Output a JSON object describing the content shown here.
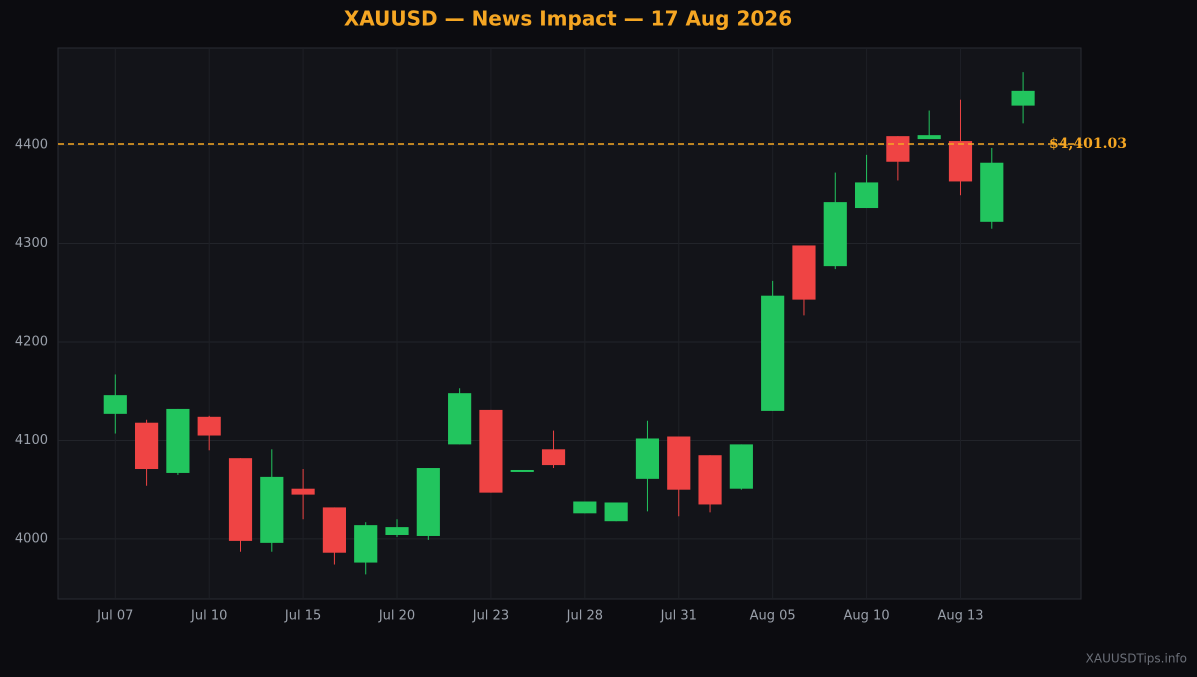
{
  "chart_data": {
    "type": "candlestick",
    "title": "XAUUSD — News Impact — 17 Aug 2026",
    "categories": [
      "Jul 07",
      null,
      null,
      "Jul 10",
      null,
      null,
      "Jul 15",
      null,
      null,
      "Jul 20",
      null,
      null,
      "Jul 23",
      null,
      null,
      "Jul 28",
      null,
      null,
      "Jul 31",
      null,
      null,
      "Aug 05",
      null,
      null,
      "Aug 10",
      null,
      null,
      "Aug 13",
      null,
      null
    ],
    "open": [
      4127,
      4118,
      4067,
      4124,
      4082,
      3996,
      4051,
      4032,
      3976,
      4004,
      4003,
      4096,
      4131,
      4068,
      4091,
      4026,
      4018,
      4061,
      4104,
      4085,
      4051,
      4130,
      4298,
      4277,
      4336,
      4409,
      4406,
      4404,
      4322,
      4440
    ],
    "high": [
      4167,
      4121,
      4132,
      4125,
      4082,
      4091,
      4071,
      4032,
      4017,
      4020,
      4072,
      4153,
      4131,
      4070,
      4110,
      4038,
      4037,
      4120,
      4104,
      4085,
      4096,
      4262,
      4298,
      4372,
      4390,
      4409,
      4435,
      4446,
      4397,
      4474
    ],
    "low": [
      4107,
      4054,
      4065,
      4090,
      3987,
      3987,
      4020,
      3974,
      3964,
      4002,
      3999,
      4096,
      4047,
      4068,
      4072,
      4026,
      4018,
      4028,
      4023,
      4027,
      4050,
      4130,
      4227,
      4274,
      4336,
      4364,
      4406,
      4349,
      4315,
      4422
    ],
    "close": [
      4146,
      4071,
      4132,
      4105,
      3998,
      4063,
      4045,
      3986,
      4014,
      4012,
      4072,
      4148,
      4047,
      4070,
      4075,
      4038,
      4037,
      4102,
      4050,
      4035,
      4096,
      4247,
      4243,
      4342,
      4362,
      4383,
      4410,
      4363,
      4382,
      4455
    ],
    "up_color": "#22c55e",
    "down_color": "#ef4444",
    "ylim": [
      3939,
      4498.5
    ],
    "yticks": [
      4000,
      4100,
      4200,
      4300,
      4400
    ],
    "grid": true,
    "reference_line": {
      "value": 4401.03,
      "label": "$4,401.03",
      "color": "#f5a623"
    },
    "watermark": "XAUUSDTips.info"
  }
}
